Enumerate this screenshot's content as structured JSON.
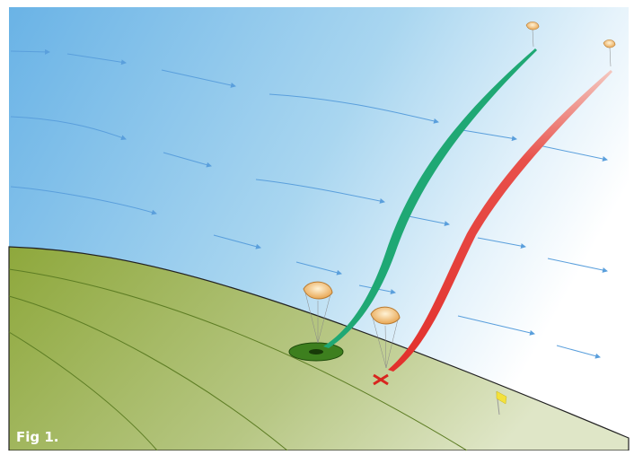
{
  "figure": {
    "label": "Fig 1."
  }
}
